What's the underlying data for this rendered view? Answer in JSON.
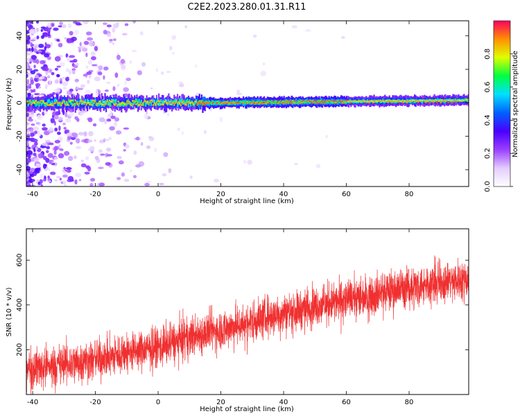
{
  "figure": {
    "title": "C2E2.2023.280.01.31.R11"
  },
  "chart_data": [
    {
      "type": "heatmap",
      "xlabel": "Height of straight line (km)",
      "ylabel": "Frequency (Hz)",
      "xlim": [
        -42,
        99
      ],
      "ylim": [
        -50,
        49
      ],
      "xticks": [
        "-40",
        "-20",
        "0",
        "20",
        "40",
        "60",
        "80"
      ],
      "yticks": [
        "40",
        "20",
        "0",
        "-20",
        "-40"
      ],
      "colorbar": {
        "label": "Normalized spectral amplitude",
        "range": [
          0,
          1
        ],
        "ticks": [
          "0.0",
          "0.2",
          "0.4",
          "0.6",
          "0.8"
        ],
        "colormap": [
          "#ffffff",
          "#e4ccff",
          "#9a40ff",
          "#4a00ff",
          "#0060ff",
          "#00e0ff",
          "#00ff40",
          "#e0ff00",
          "#ff9000",
          "#ff0060"
        ]
      },
      "ridge": {
        "frequency_hz": 0,
        "x_range": [
          -42,
          99
        ],
        "peak_amplitude": 0.95
      }
    },
    {
      "type": "line",
      "xlabel": "Height of straight line (km)",
      "ylabel": "SNR (10 * v/v)",
      "xlim": [
        -42,
        99
      ],
      "ylim": [
        0,
        740
      ],
      "xticks": [
        "-40",
        "-20",
        "0",
        "20",
        "40",
        "60",
        "80"
      ],
      "yticks": [
        "600",
        "400",
        "200"
      ],
      "line_color": "#f03030",
      "trend": {
        "x": [
          -42,
          -30,
          -20,
          -10,
          0,
          10,
          20,
          30,
          40,
          50,
          60,
          70,
          80,
          90,
          99
        ],
        "y": [
          115,
          135,
          155,
          185,
          210,
          255,
          290,
          325,
          365,
          395,
          420,
          450,
          480,
          500,
          515
        ]
      },
      "noise_amplitude": 120
    }
  ]
}
